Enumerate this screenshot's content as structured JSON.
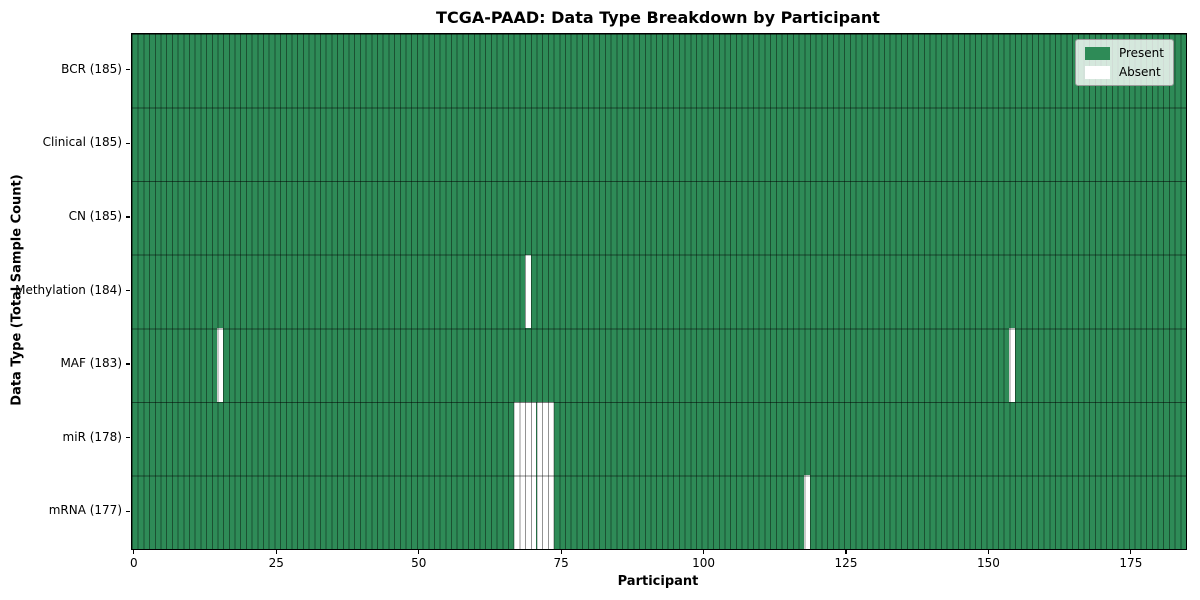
{
  "chart_data": {
    "type": "heatmap",
    "title": "TCGA-PAAD: Data Type Breakdown by Participant",
    "xlabel": "Participant",
    "ylabel": "Data Type (Total Sample Count)",
    "n_participants": 185,
    "x_ticks": [
      0,
      25,
      50,
      75,
      100,
      125,
      150,
      175
    ],
    "legend": {
      "position": "upper right",
      "entries": [
        {
          "label": "Present",
          "color": "#2e8b57"
        },
        {
          "label": "Absent",
          "color": "#ffffff"
        }
      ]
    },
    "rows": [
      {
        "label": "BCR (185)",
        "data_type": "BCR",
        "total_samples": 185,
        "absent_participants": []
      },
      {
        "label": "Clinical (185)",
        "data_type": "Clinical",
        "total_samples": 185,
        "absent_participants": []
      },
      {
        "label": "CN (185)",
        "data_type": "CN",
        "total_samples": 185,
        "absent_participants": []
      },
      {
        "label": "Methylation (184)",
        "data_type": "Methylation",
        "total_samples": 184,
        "absent_participants": [
          69
        ]
      },
      {
        "label": "MAF (183)",
        "data_type": "MAF",
        "total_samples": 183,
        "absent_participants": [
          15,
          154
        ]
      },
      {
        "label": "miR (178)",
        "data_type": "miR",
        "total_samples": 178,
        "absent_participants": [
          67,
          68,
          69,
          70,
          71,
          72,
          73
        ]
      },
      {
        "label": "mRNA (177)",
        "data_type": "mRNA",
        "total_samples": 177,
        "absent_participants": [
          67,
          68,
          69,
          70,
          71,
          72,
          73,
          118
        ]
      }
    ],
    "colors": {
      "present": "#2e8b57",
      "absent": "#ffffff",
      "v_grid_line": "rgba(0,0,0,0.42)",
      "h_grid_line": "rgba(0,0,0,0.5)",
      "axis": "#000000"
    }
  }
}
